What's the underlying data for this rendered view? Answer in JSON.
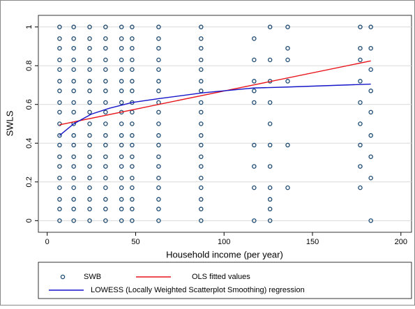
{
  "chart_data": {
    "type": "scatter",
    "xlabel": "Household income  (per year)",
    "ylabel": "SWLS",
    "xlim": [
      -5,
      206
    ],
    "ylim": [
      -0.06,
      1.06
    ],
    "xticks": [
      0,
      50,
      100,
      150,
      200
    ],
    "yticks": [
      0,
      0.2,
      0.4,
      0.6,
      0.8,
      1
    ],
    "grid": true,
    "legend": "bottom",
    "series": [
      {
        "name": "SWB",
        "type": "scatter",
        "color": "#1a476f",
        "x": [
          7,
          7,
          7,
          7,
          7,
          7,
          7,
          7,
          7,
          7,
          7,
          7,
          7,
          7,
          7,
          7,
          7,
          7,
          7,
          15,
          15,
          15,
          15,
          15,
          15,
          15,
          15,
          15,
          15,
          15,
          15,
          15,
          15,
          15,
          15,
          15,
          15,
          15,
          24,
          24,
          24,
          24,
          24,
          24,
          24,
          24,
          24,
          24,
          24,
          24,
          24,
          24,
          24,
          24,
          24,
          24,
          24,
          33,
          33,
          33,
          33,
          33,
          33,
          33,
          33,
          33,
          33,
          33,
          33,
          33,
          33,
          33,
          33,
          33,
          33,
          33,
          42,
          42,
          42,
          42,
          42,
          42,
          42,
          42,
          42,
          42,
          42,
          42,
          42,
          42,
          42,
          42,
          42,
          42,
          42,
          48,
          48,
          48,
          48,
          48,
          48,
          48,
          48,
          48,
          48,
          48,
          48,
          48,
          48,
          48,
          48,
          48,
          48,
          48,
          63,
          63,
          63,
          63,
          63,
          63,
          63,
          63,
          63,
          63,
          63,
          63,
          63,
          63,
          63,
          63,
          63,
          63,
          63,
          87,
          87,
          87,
          87,
          87,
          87,
          87,
          87,
          87,
          87,
          87,
          87,
          87,
          87,
          87,
          87,
          87,
          87,
          87,
          117,
          117,
          117,
          117,
          117,
          117,
          117,
          117,
          117,
          126,
          126,
          126,
          126,
          126,
          126,
          126,
          126,
          126,
          126,
          126,
          136,
          136,
          136,
          136,
          136,
          136,
          177,
          177,
          177,
          177,
          177,
          177,
          177,
          177,
          177,
          183,
          183,
          183,
          183,
          183,
          183,
          183,
          183,
          183
        ],
        "y": [
          0,
          0.06,
          0.11,
          0.17,
          0.22,
          0.28,
          0.33,
          0.39,
          0.44,
          0.5,
          0.56,
          0.61,
          0.67,
          0.72,
          0.78,
          0.83,
          0.89,
          0.94,
          1,
          0,
          0.06,
          0.11,
          0.17,
          0.22,
          0.28,
          0.33,
          0.39,
          0.44,
          0.5,
          0.56,
          0.61,
          0.67,
          0.72,
          0.78,
          0.83,
          0.89,
          0.94,
          1,
          0,
          0.06,
          0.11,
          0.17,
          0.22,
          0.28,
          0.33,
          0.39,
          0.44,
          0.5,
          0.56,
          0.61,
          0.67,
          0.72,
          0.78,
          0.83,
          0.89,
          0.94,
          1,
          0,
          0.06,
          0.11,
          0.17,
          0.22,
          0.28,
          0.33,
          0.39,
          0.44,
          0.5,
          0.56,
          0.61,
          0.67,
          0.72,
          0.78,
          0.83,
          0.89,
          0.94,
          1,
          0,
          0.06,
          0.11,
          0.17,
          0.22,
          0.28,
          0.33,
          0.39,
          0.44,
          0.5,
          0.56,
          0.61,
          0.67,
          0.72,
          0.78,
          0.83,
          0.89,
          0.94,
          1,
          0,
          0.06,
          0.11,
          0.17,
          0.22,
          0.28,
          0.33,
          0.39,
          0.44,
          0.5,
          0.56,
          0.61,
          0.67,
          0.72,
          0.78,
          0.83,
          0.89,
          0.94,
          1,
          0,
          0.06,
          0.11,
          0.17,
          0.22,
          0.28,
          0.33,
          0.39,
          0.44,
          0.5,
          0.56,
          0.61,
          0.67,
          0.72,
          0.78,
          0.83,
          0.89,
          0.94,
          1,
          0,
          0.06,
          0.11,
          0.17,
          0.22,
          0.28,
          0.33,
          0.39,
          0.44,
          0.5,
          0.56,
          0.61,
          0.67,
          0.72,
          0.78,
          0.83,
          0.89,
          0.94,
          1,
          0,
          0.17,
          0.28,
          0.39,
          0.61,
          0.67,
          0.72,
          0.83,
          0.94,
          0,
          0.06,
          0.11,
          0.17,
          0.28,
          0.39,
          0.5,
          0.61,
          0.72,
          0.83,
          1,
          0.17,
          0.39,
          0.72,
          0.83,
          0.89,
          1,
          0.17,
          0.28,
          0.39,
          0.5,
          0.61,
          0.72,
          0.83,
          0.89,
          1,
          0,
          0.22,
          0.33,
          0.44,
          0.56,
          0.67,
          0.78,
          0.89,
          1
        ]
      },
      {
        "name": "OLS fitted values",
        "type": "line",
        "color": "#e8141a",
        "x": [
          7,
          183
        ],
        "y": [
          0.495,
          0.825
        ]
      },
      {
        "name": "LOWESS (Locally Weighted Scatterplot Smoothing) regression",
        "type": "line",
        "color": "#1414c8",
        "x": [
          7,
          15,
          25,
          35,
          48,
          63,
          88,
          117,
          136,
          183
        ],
        "y": [
          0.44,
          0.5,
          0.55,
          0.58,
          0.61,
          0.63,
          0.66,
          0.685,
          0.69,
          0.705
        ]
      }
    ]
  }
}
